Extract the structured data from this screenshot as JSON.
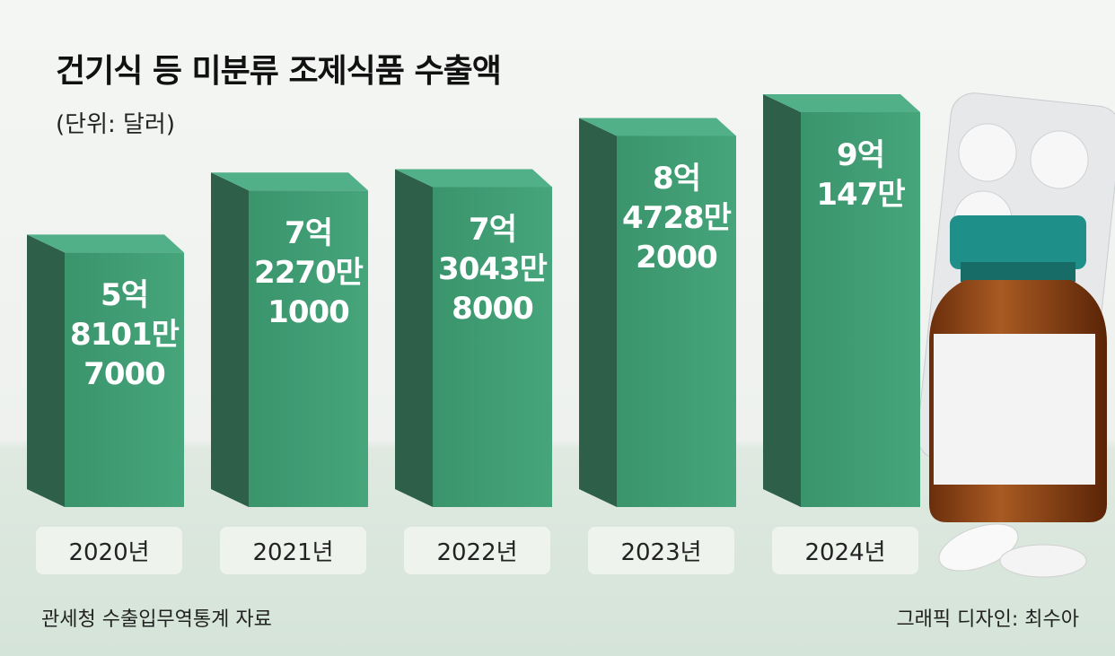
{
  "chart_data": {
    "type": "bar",
    "title": "건기식 등 미분류 조제식품 수출액",
    "subtitle": "(단위: 달러)",
    "categories": [
      "2020년",
      "2021년",
      "2022년",
      "2023년",
      "2024년"
    ],
    "values": [
      581017000,
      722701000,
      730438000,
      847282000,
      901470000
    ],
    "value_labels": [
      "5억\n8101만\n7000",
      "7억\n2270만\n1000",
      "7억\n3043만\n8000",
      "8억\n4728만\n2000",
      "9억\n147만"
    ],
    "color": "#3f9b72",
    "source": "관세청 수출입무역통계 자료",
    "credit": "그래픽 디자인: 최수아"
  }
}
